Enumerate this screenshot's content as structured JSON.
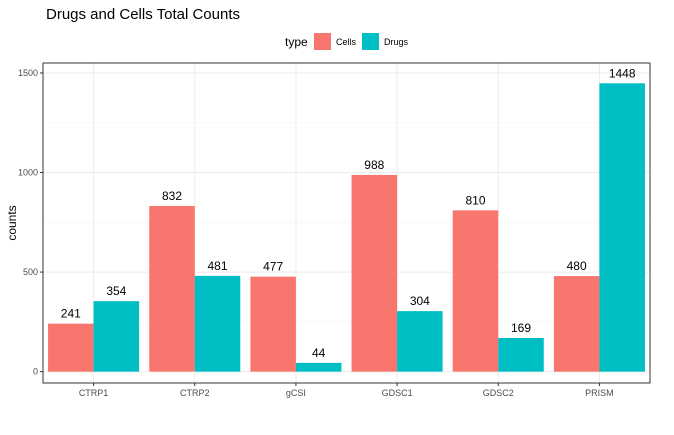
{
  "chart_data": {
    "type": "bar",
    "title": "Drugs and Cells Total Counts",
    "xlabel": "",
    "ylabel": "counts",
    "categories": [
      "CTRP1",
      "CTRP2",
      "gCSI",
      "GDSC1",
      "GDSC2",
      "PRISM"
    ],
    "series": [
      {
        "name": "Cells",
        "color": "#F8766D",
        "values": [
          241,
          832,
          477,
          988,
          810,
          480
        ]
      },
      {
        "name": "Drugs",
        "color": "#00BFC4",
        "values": [
          354,
          481,
          44,
          304,
          169,
          1448
        ]
      }
    ],
    "ylim": [
      -57,
      1550
    ],
    "yticks": [
      0,
      500,
      1000,
      1500
    ],
    "grid": true,
    "legend": {
      "title": "type",
      "position": "top"
    }
  }
}
